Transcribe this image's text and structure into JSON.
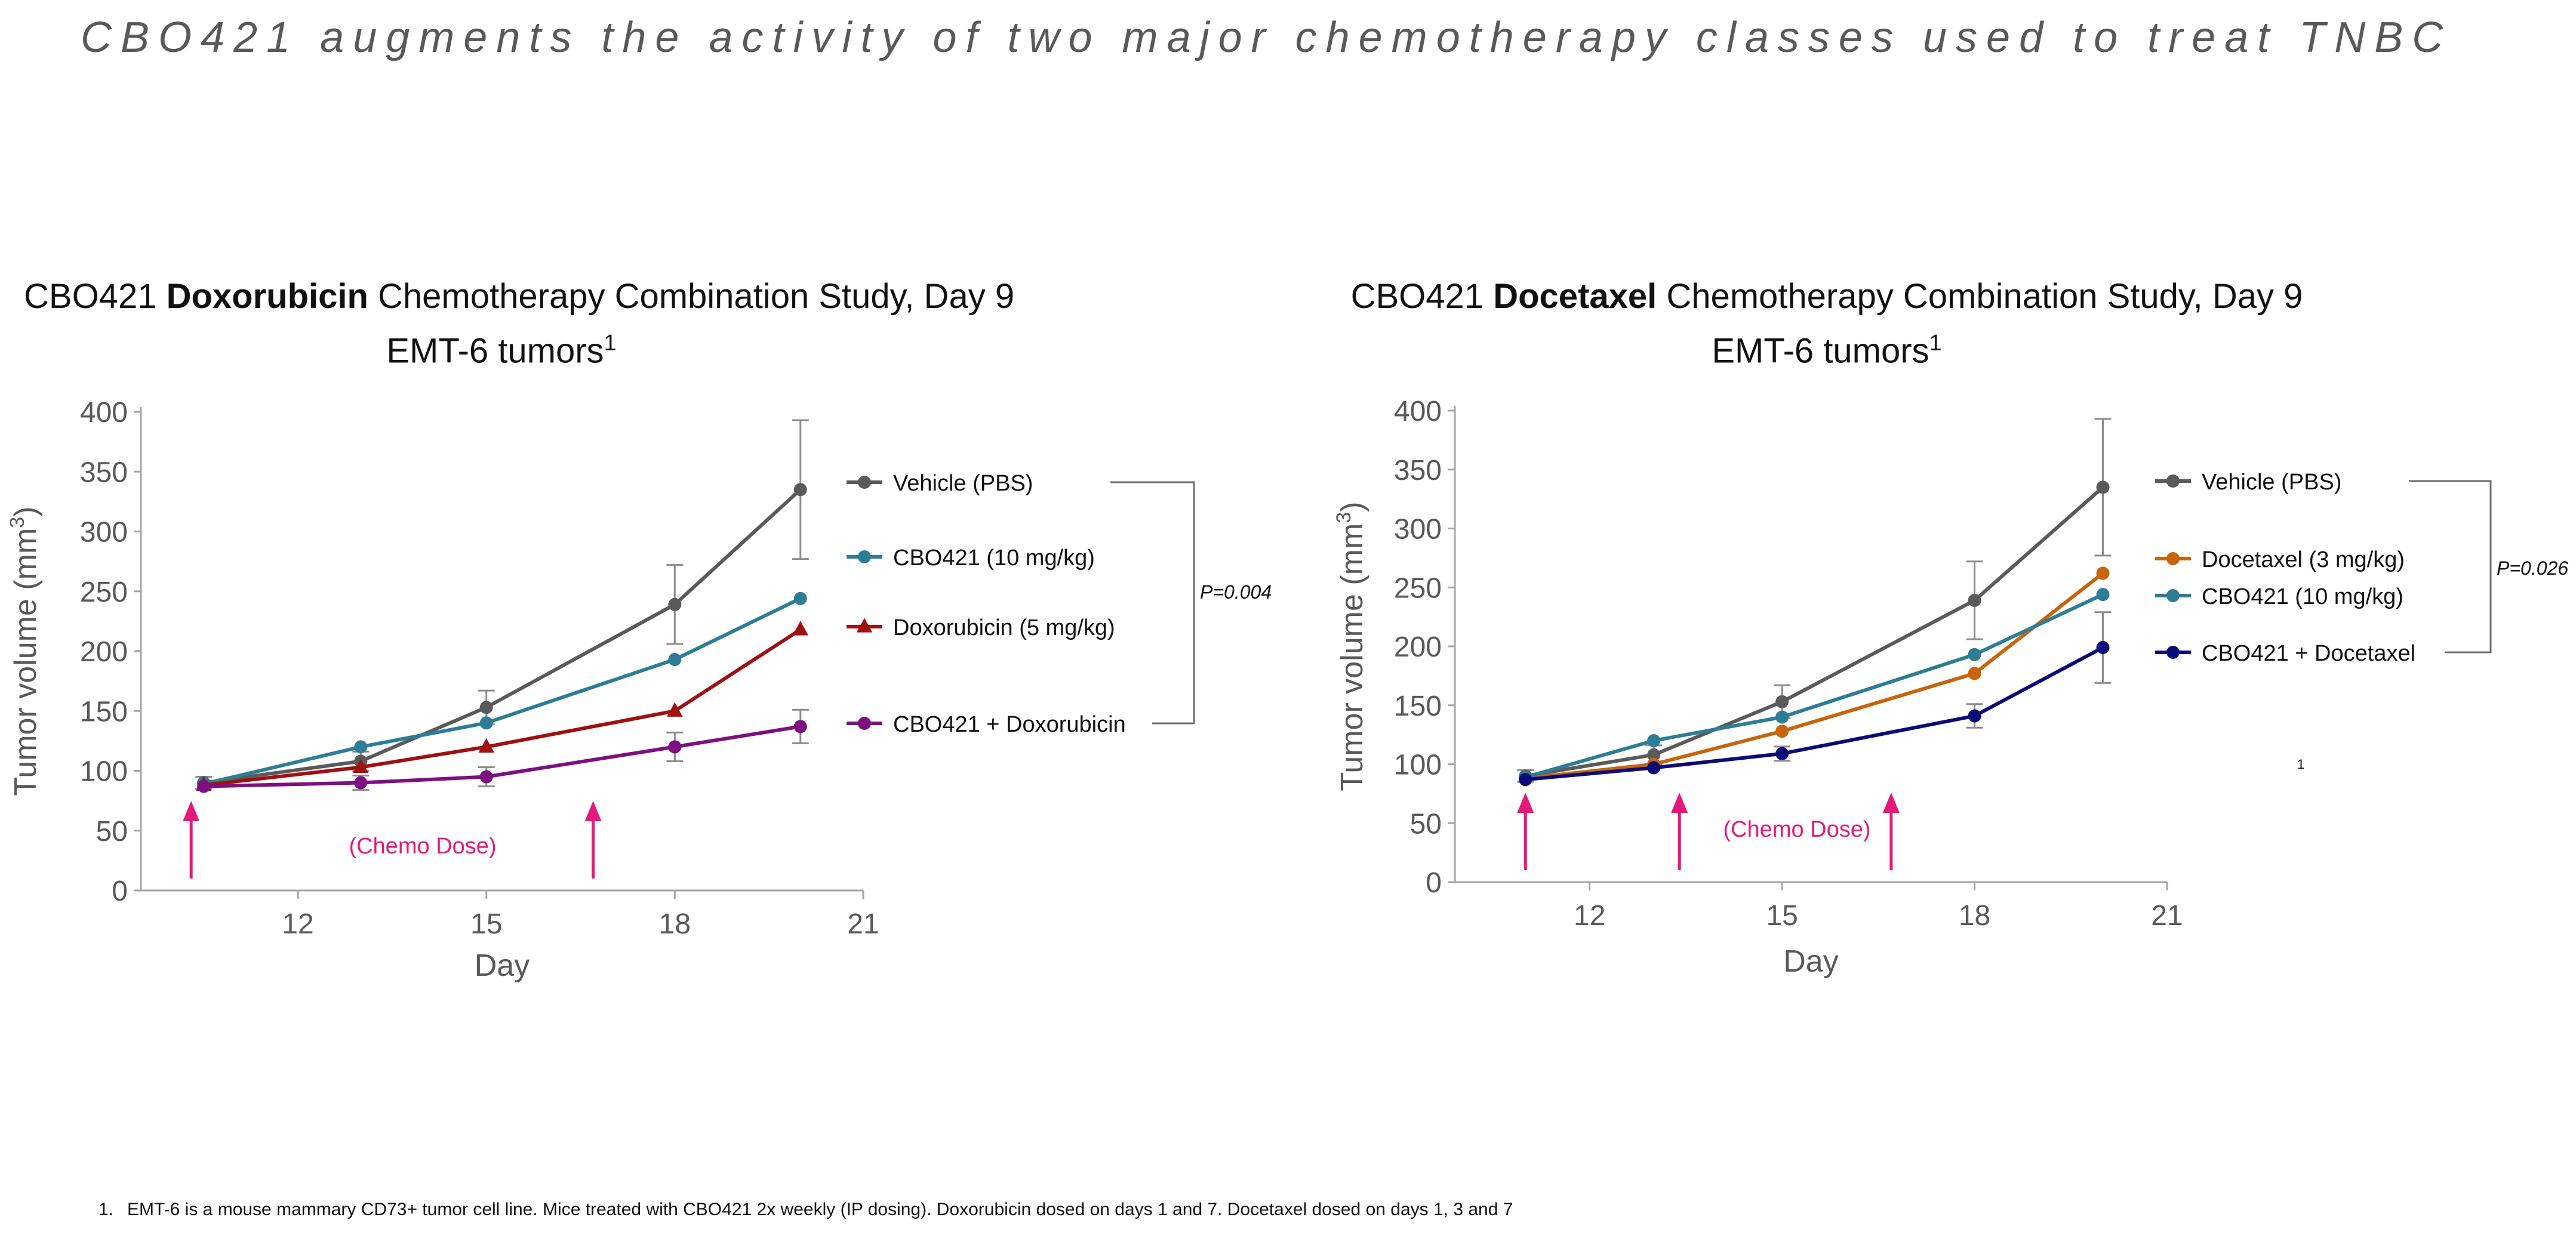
{
  "page": {
    "title": "CBO421 augments the activity of two major chemotherapy classes used to treat TNBC",
    "footnote_number": "1.",
    "footnote": "EMT-6 is a mouse mammary CD73+ tumor cell line. Mice treated with CBO421 2x weekly (IP dosing). Doxorubicin dosed on days 1 and 7. Docetaxel dosed on days 1, 3 and 7"
  },
  "chart_data": [
    {
      "type": "line",
      "title_pre": "CBO421 ",
      "title_bold": "Doxorubicin",
      "title_post": " Chemotherapy Combination Study, Day 9",
      "subtitle": "EMT-6 tumors",
      "subtitle_sup": "1",
      "xlabel": "Day",
      "ylabel": "Tumor volume (mm",
      "ylabel_sup": "3",
      "ylabel_post": ")",
      "xlim": [
        9.5,
        21
      ],
      "ylim": [
        0,
        400
      ],
      "xticks": [
        12,
        15,
        18,
        21
      ],
      "yticks": [
        0,
        50,
        100,
        150,
        200,
        250,
        300,
        350,
        400
      ],
      "x": [
        10.5,
        13,
        15,
        18,
        20
      ],
      "series": [
        {
          "name": "Vehicle (PBS)",
          "color": "#5a5a5a",
          "marker": "circle",
          "values": [
            90,
            108,
            153,
            239,
            335
          ],
          "error": [
            5,
            8,
            14,
            33,
            58
          ]
        },
        {
          "name": "CBO421 (10 mg/kg)",
          "color": "#2e7d96",
          "marker": "circle",
          "values": [
            89,
            120,
            140,
            193,
            244
          ],
          "error": [
            null,
            null,
            null,
            null,
            null
          ]
        },
        {
          "name": "Doxorubicin (5 mg/kg)",
          "color": "#a01010",
          "marker": "triangle",
          "values": [
            88,
            103,
            120,
            150,
            218
          ],
          "error": [
            null,
            null,
            null,
            null,
            null
          ]
        },
        {
          "name": "CBO421 + Doxorubicin",
          "color": "#7d0f80",
          "marker": "circle",
          "values": [
            87,
            90,
            95,
            120,
            137
          ],
          "error": [
            null,
            6,
            8,
            12,
            14
          ]
        }
      ],
      "bracket": {
        "from": "Vehicle (PBS)",
        "to": "CBO421 + Doxorubicin",
        "label": "P=0.004"
      },
      "dose_label": "(Chemo Dose)",
      "dose_days": [
        10.3,
        16.7
      ],
      "dose_color": "#e6197a",
      "stray_label": ""
    },
    {
      "type": "line",
      "title_pre": "CBO421 ",
      "title_bold": "Docetaxel",
      "title_post": " Chemotherapy Combination Study, Day 9",
      "subtitle": "EMT-6 tumors",
      "subtitle_sup": "1",
      "xlabel": "Day",
      "ylabel": "Tumor volume (mm",
      "ylabel_sup": "3",
      "ylabel_post": ")",
      "xlim": [
        9.9,
        21
      ],
      "ylim": [
        0,
        400
      ],
      "xticks": [
        12,
        15,
        18,
        21
      ],
      "yticks": [
        0,
        50,
        100,
        150,
        200,
        250,
        300,
        350,
        400
      ],
      "x": [
        11,
        13,
        15,
        18,
        20
      ],
      "series": [
        {
          "name": "Vehicle (PBS)",
          "color": "#5a5a5a",
          "marker": "circle",
          "values": [
            90,
            108,
            153,
            239,
            335
          ],
          "error": [
            5,
            8,
            14,
            33,
            58
          ]
        },
        {
          "name": "Docetaxel (3 mg/kg)",
          "color": "#c8640a",
          "marker": "circle",
          "values": [
            88,
            100,
            128,
            177,
            262
          ],
          "error": [
            null,
            null,
            null,
            null,
            null
          ]
        },
        {
          "name": "CBO421 (10 mg/kg)",
          "color": "#2e7d96",
          "marker": "circle",
          "values": [
            89,
            120,
            140,
            193,
            244
          ],
          "error": [
            null,
            null,
            null,
            null,
            null
          ]
        },
        {
          "name": "CBO421 + Docetaxel",
          "color": "#0a0a78",
          "marker": "circle",
          "values": [
            87,
            97,
            109,
            141,
            199
          ],
          "error": [
            null,
            null,
            6,
            10,
            30
          ]
        }
      ],
      "bracket": {
        "from": "Vehicle (PBS)",
        "to": "CBO421 + Docetaxel",
        "label": "P=0.026"
      },
      "dose_label": "(Chemo Dose)",
      "dose_days": [
        11,
        13.4,
        16.7
      ],
      "dose_color": "#e6197a",
      "stray_label": "1"
    }
  ]
}
